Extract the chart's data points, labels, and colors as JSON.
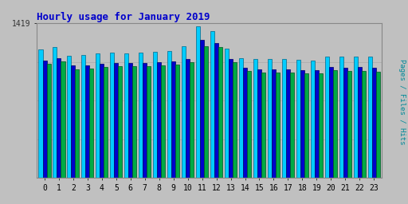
{
  "title": "Hourly usage for January 2019",
  "hours": [
    0,
    1,
    2,
    3,
    4,
    5,
    6,
    7,
    8,
    9,
    10,
    11,
    12,
    13,
    14,
    15,
    16,
    17,
    18,
    19,
    20,
    21,
    22,
    23
  ],
  "hits": [
    1180,
    1200,
    1120,
    1130,
    1145,
    1150,
    1145,
    1150,
    1155,
    1165,
    1210,
    1390,
    1350,
    1190,
    1100,
    1090,
    1095,
    1090,
    1085,
    1080,
    1115,
    1110,
    1115,
    1110
  ],
  "files": [
    1080,
    1100,
    1030,
    1035,
    1050,
    1055,
    1055,
    1055,
    1060,
    1070,
    1090,
    1270,
    1240,
    1090,
    1010,
    1000,
    1000,
    995,
    990,
    988,
    1020,
    1010,
    1015,
    1008
  ],
  "pages": [
    1050,
    1070,
    1000,
    1005,
    1020,
    1025,
    1025,
    1025,
    1030,
    1040,
    1060,
    1210,
    1200,
    1060,
    980,
    970,
    970,
    965,
    960,
    958,
    990,
    980,
    985,
    978
  ],
  "ylim": [
    0,
    1419
  ],
  "ytick_label": "1419",
  "hits_color": "#00ccff",
  "files_color": "#0000cc",
  "pages_color": "#00aa44",
  "hits_edge": "#006688",
  "files_edge": "#000066",
  "pages_edge": "#005522",
  "background_color": "#c0c0c0",
  "title_color": "#0000cc",
  "bar_width": 0.28,
  "grid_color": "#aaaaaa",
  "ylabel": "Pages / Files / Hits"
}
